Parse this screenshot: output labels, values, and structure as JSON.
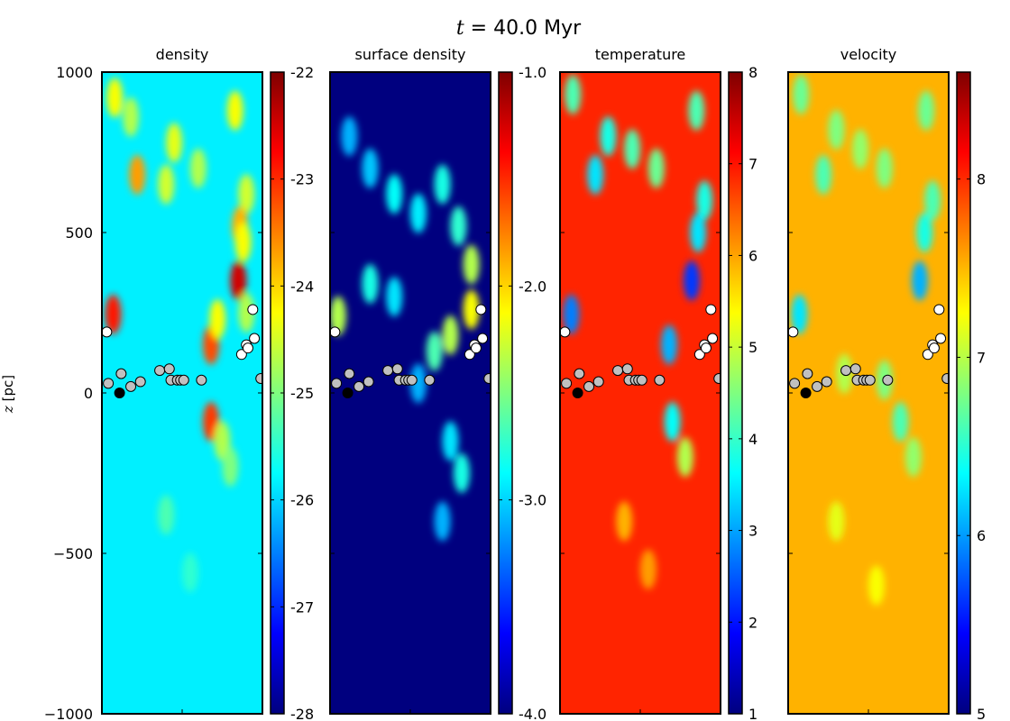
{
  "figure": {
    "title_var": "t",
    "title_rest": " = 40.0 Myr",
    "ylabel_var": "z",
    "ylabel_unit": " [pc]"
  },
  "colors": {
    "jet": [
      "#00007f",
      "#0000ff",
      "#007fff",
      "#00ffff",
      "#7fff7f",
      "#ffff00",
      "#ff7f00",
      "#ff0000",
      "#7f0000"
    ],
    "star_gray": "#c0c0c0",
    "star_white": "#ffffff",
    "star_black": "#000000"
  },
  "chart_data": [
    {
      "type": "heatmap",
      "title": "density",
      "ylim": [
        -1000,
        1000
      ],
      "yticks": [
        1000,
        500,
        0,
        -500,
        -1000
      ],
      "ytick_labels": [
        "1000",
        "500",
        "0",
        "−500",
        "−1000"
      ],
      "colorbar": {
        "range": [
          -28,
          -22
        ],
        "ticks": [
          -22,
          -23,
          -24,
          -25,
          -26,
          -27,
          -28
        ],
        "tick_labels": [
          "-22",
          "-23",
          "-24",
          "-25",
          "-26",
          "-27",
          "-28"
        ]
      },
      "background_level": 0.36,
      "clumps": [
        {
          "x": 0.08,
          "z": 920,
          "level": 0.62
        },
        {
          "x": 0.18,
          "z": 860,
          "level": 0.55
        },
        {
          "x": 0.45,
          "z": 780,
          "level": 0.6
        },
        {
          "x": 0.22,
          "z": 680,
          "level": 0.72
        },
        {
          "x": 0.4,
          "z": 650,
          "level": 0.58
        },
        {
          "x": 0.6,
          "z": 700,
          "level": 0.55
        },
        {
          "x": 0.83,
          "z": 880,
          "level": 0.62
        },
        {
          "x": 0.9,
          "z": 620,
          "level": 0.58
        },
        {
          "x": 0.86,
          "z": 520,
          "level": 0.7
        },
        {
          "x": 0.88,
          "z": 470,
          "level": 0.62
        },
        {
          "x": 0.85,
          "z": 350,
          "level": 0.92
        },
        {
          "x": 0.9,
          "z": 250,
          "level": 0.55
        },
        {
          "x": 0.07,
          "z": 245,
          "level": 0.85
        },
        {
          "x": 0.68,
          "z": 150,
          "level": 0.8
        },
        {
          "x": 0.72,
          "z": 230,
          "level": 0.62
        },
        {
          "x": 0.68,
          "z": -90,
          "level": 0.82
        },
        {
          "x": 0.75,
          "z": -150,
          "level": 0.55
        },
        {
          "x": 0.8,
          "z": -230,
          "level": 0.5
        },
        {
          "x": 0.4,
          "z": -380,
          "level": 0.45
        },
        {
          "x": 0.55,
          "z": -560,
          "level": 0.42
        }
      ]
    },
    {
      "type": "heatmap",
      "title": "surface density",
      "ylim": [
        -1000,
        1000
      ],
      "colorbar": {
        "range": [
          -4.0,
          -1.0
        ],
        "ticks": [
          -1.0,
          -2.0,
          -3.0,
          -4.0
        ],
        "tick_labels": [
          "-1.0",
          "-2.0",
          "-3.0",
          "-4.0"
        ]
      },
      "background_level": 0.0,
      "clumps": [
        {
          "x": 0.12,
          "z": 800,
          "level": 0.3
        },
        {
          "x": 0.25,
          "z": 700,
          "level": 0.32
        },
        {
          "x": 0.4,
          "z": 620,
          "level": 0.38
        },
        {
          "x": 0.55,
          "z": 560,
          "level": 0.36
        },
        {
          "x": 0.7,
          "z": 650,
          "level": 0.4
        },
        {
          "x": 0.8,
          "z": 520,
          "level": 0.42
        },
        {
          "x": 0.88,
          "z": 400,
          "level": 0.55
        },
        {
          "x": 0.88,
          "z": 260,
          "level": 0.62
        },
        {
          "x": 0.75,
          "z": 180,
          "level": 0.55
        },
        {
          "x": 0.65,
          "z": 130,
          "level": 0.45
        },
        {
          "x": 0.05,
          "z": 240,
          "level": 0.55
        },
        {
          "x": 0.25,
          "z": 340,
          "level": 0.4
        },
        {
          "x": 0.4,
          "z": 300,
          "level": 0.35
        },
        {
          "x": 0.55,
          "z": 30,
          "level": 0.3
        },
        {
          "x": 0.75,
          "z": -150,
          "level": 0.35
        },
        {
          "x": 0.82,
          "z": -250,
          "level": 0.4
        },
        {
          "x": 0.7,
          "z": -400,
          "level": 0.3
        }
      ]
    },
    {
      "type": "heatmap",
      "title": "temperature",
      "ylim": [
        -1000,
        1000
      ],
      "colorbar": {
        "range": [
          1,
          8
        ],
        "ticks": [
          8,
          7,
          6,
          5,
          4,
          3,
          2,
          1
        ],
        "tick_labels": [
          "8",
          "7",
          "6",
          "5",
          "4",
          "3",
          "2",
          "1"
        ]
      },
      "background_level": 0.84,
      "clumps": [
        {
          "x": 0.08,
          "z": 930,
          "level": 0.45
        },
        {
          "x": 0.3,
          "z": 800,
          "level": 0.4
        },
        {
          "x": 0.22,
          "z": 680,
          "level": 0.35
        },
        {
          "x": 0.45,
          "z": 760,
          "level": 0.45
        },
        {
          "x": 0.6,
          "z": 700,
          "level": 0.48
        },
        {
          "x": 0.85,
          "z": 880,
          "level": 0.45
        },
        {
          "x": 0.9,
          "z": 600,
          "level": 0.4
        },
        {
          "x": 0.86,
          "z": 500,
          "level": 0.35
        },
        {
          "x": 0.82,
          "z": 350,
          "level": 0.18
        },
        {
          "x": 0.07,
          "z": 245,
          "level": 0.25
        },
        {
          "x": 0.68,
          "z": 150,
          "level": 0.3
        },
        {
          "x": 0.7,
          "z": -90,
          "level": 0.38
        },
        {
          "x": 0.78,
          "z": -200,
          "level": 0.55
        },
        {
          "x": 0.4,
          "z": -400,
          "level": 0.7
        },
        {
          "x": 0.55,
          "z": -550,
          "level": 0.72
        }
      ]
    },
    {
      "type": "heatmap",
      "title": "velocity",
      "ylim": [
        -1000,
        1000
      ],
      "colorbar": {
        "range": [
          5,
          8.6
        ],
        "ticks": [
          8,
          7,
          6,
          5
        ],
        "tick_labels": [
          "8",
          "7",
          "6",
          "5"
        ]
      },
      "background_level": 0.7,
      "clumps": [
        {
          "x": 0.08,
          "z": 930,
          "level": 0.48
        },
        {
          "x": 0.3,
          "z": 820,
          "level": 0.5
        },
        {
          "x": 0.22,
          "z": 680,
          "level": 0.45
        },
        {
          "x": 0.45,
          "z": 760,
          "level": 0.52
        },
        {
          "x": 0.6,
          "z": 700,
          "level": 0.5
        },
        {
          "x": 0.86,
          "z": 880,
          "level": 0.48
        },
        {
          "x": 0.9,
          "z": 600,
          "level": 0.45
        },
        {
          "x": 0.85,
          "z": 500,
          "level": 0.4
        },
        {
          "x": 0.82,
          "z": 350,
          "level": 0.3
        },
        {
          "x": 0.07,
          "z": 245,
          "level": 0.35
        },
        {
          "x": 0.35,
          "z": 60,
          "level": 0.55
        },
        {
          "x": 0.6,
          "z": 40,
          "level": 0.5
        },
        {
          "x": 0.7,
          "z": -90,
          "level": 0.45
        },
        {
          "x": 0.78,
          "z": -200,
          "level": 0.52
        },
        {
          "x": 0.3,
          "z": -400,
          "level": 0.6
        },
        {
          "x": 0.55,
          "z": -600,
          "level": 0.62
        }
      ]
    }
  ],
  "star_particles": [
    {
      "x": 0.03,
      "z": 190,
      "color": "white"
    },
    {
      "x": 0.04,
      "z": 30,
      "color": "gray"
    },
    {
      "x": 0.12,
      "z": 60,
      "color": "gray"
    },
    {
      "x": 0.18,
      "z": 20,
      "color": "gray"
    },
    {
      "x": 0.24,
      "z": 35,
      "color": "gray"
    },
    {
      "x": 0.36,
      "z": 70,
      "color": "gray"
    },
    {
      "x": 0.42,
      "z": 75,
      "color": "gray"
    },
    {
      "x": 0.43,
      "z": 40,
      "color": "gray"
    },
    {
      "x": 0.47,
      "z": 40,
      "color": "gray"
    },
    {
      "x": 0.49,
      "z": 40,
      "color": "gray"
    },
    {
      "x": 0.51,
      "z": 40,
      "color": "gray"
    },
    {
      "x": 0.62,
      "z": 40,
      "color": "gray"
    },
    {
      "x": 0.99,
      "z": 45,
      "color": "gray"
    },
    {
      "x": 0.11,
      "z": 0,
      "color": "black"
    },
    {
      "x": 0.87,
      "z": 120,
      "color": "white"
    },
    {
      "x": 0.9,
      "z": 150,
      "color": "white"
    },
    {
      "x": 0.91,
      "z": 140,
      "color": "white"
    },
    {
      "x": 0.95,
      "z": 170,
      "color": "white"
    },
    {
      "x": 0.94,
      "z": 260,
      "color": "white"
    }
  ]
}
